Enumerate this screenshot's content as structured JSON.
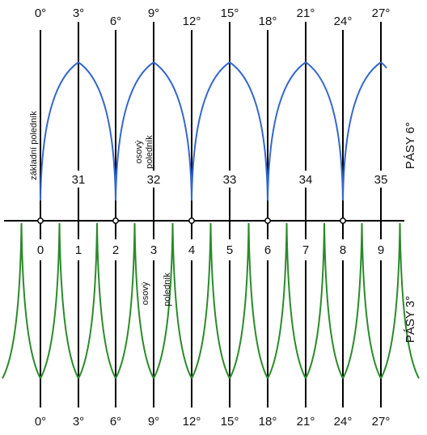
{
  "colors": {
    "meridian": "#000000",
    "zone_6": "#3366cc",
    "zone_3": "#2a8a2a",
    "node_fill": "#ffffff"
  },
  "top_degrees": [
    "0°",
    "3°",
    "6°",
    "9°",
    "12°",
    "15°",
    "18°",
    "21°",
    "24°",
    "27°"
  ],
  "bottom_degrees": [
    "0°",
    "3°",
    "6°",
    "9°",
    "12°",
    "15°",
    "18°",
    "21°",
    "24°",
    "27°"
  ],
  "zones_6": {
    "side_label": "PÁSY 6°",
    "numbers": [
      "31",
      "32",
      "33",
      "34",
      "35"
    ],
    "base_meridian_label": "základní poledník",
    "axial_meridian_label": [
      "osový",
      "poledník"
    ]
  },
  "zones_3": {
    "side_label": "PÁSY 3°",
    "numbers": [
      "0",
      "1",
      "2",
      "3",
      "4",
      "5",
      "6",
      "7",
      "8",
      "9"
    ],
    "axial_meridian_label": [
      "osový",
      "poledník"
    ]
  }
}
